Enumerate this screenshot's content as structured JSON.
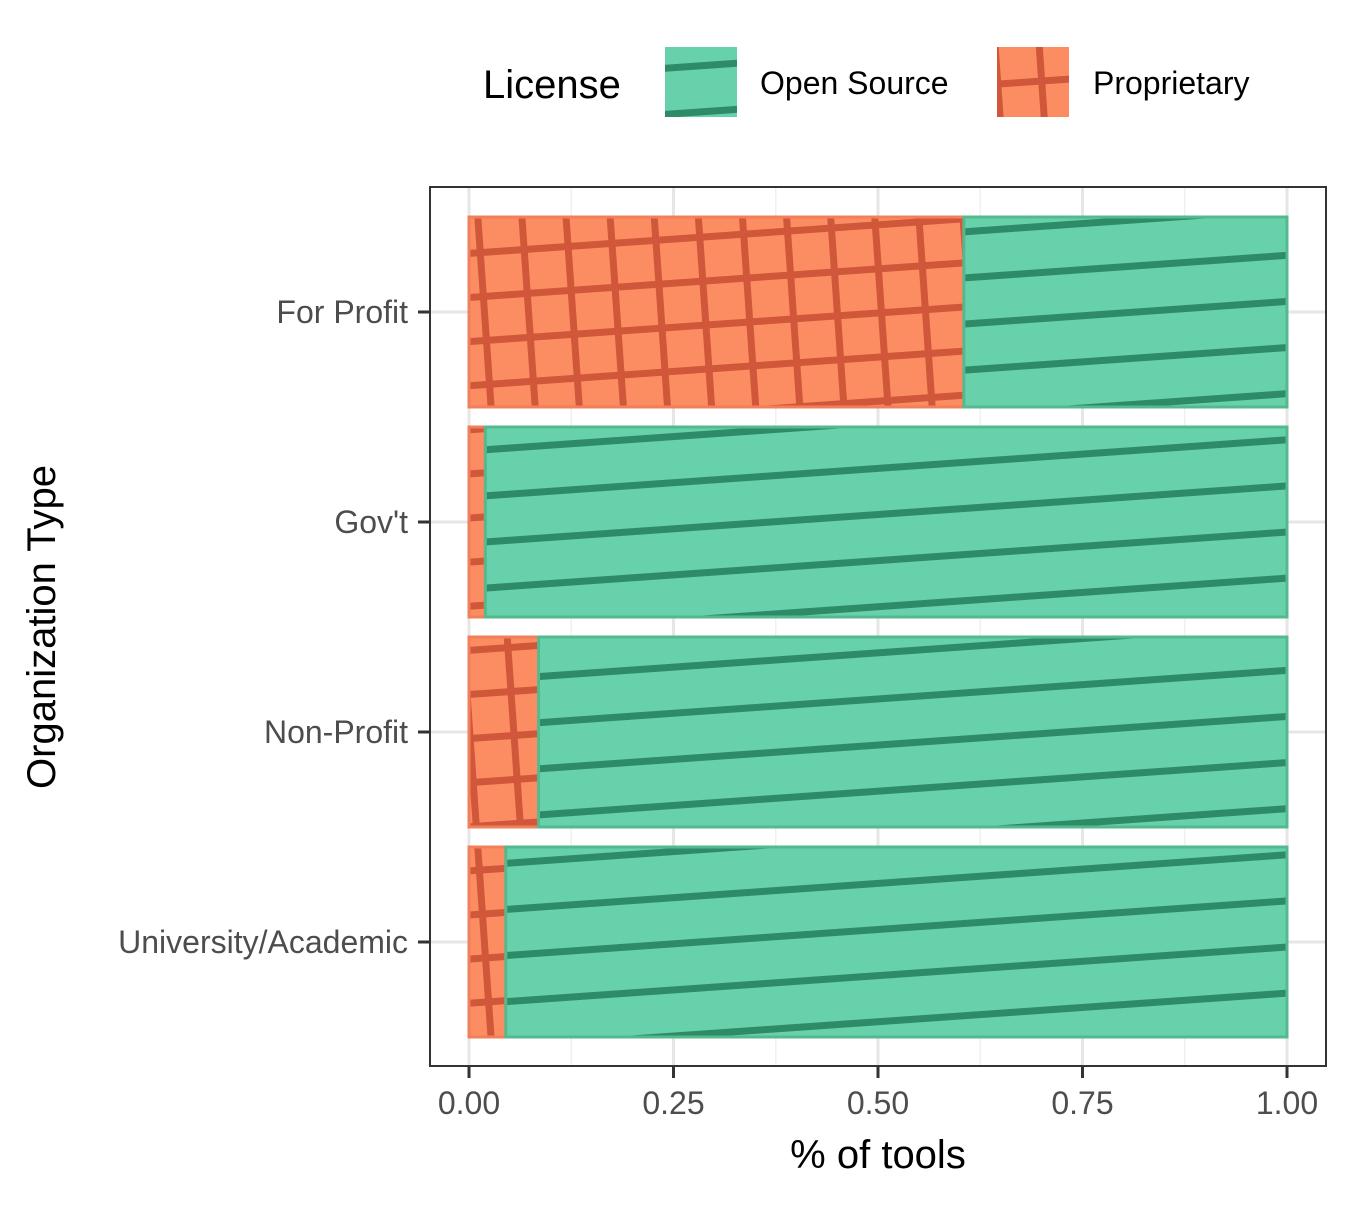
{
  "chart_data": {
    "type": "bar",
    "orientation": "horizontal",
    "stacked": true,
    "title": "",
    "xlabel": "% of tools",
    "ylabel": "Organization Type",
    "xlim": [
      0,
      1
    ],
    "x_ticks": [
      "0.00",
      "0.25",
      "0.50",
      "0.75",
      "1.00"
    ],
    "x_tick_values": [
      0,
      0.25,
      0.5,
      0.75,
      1
    ],
    "grid": true,
    "legend_position": "top",
    "legend_title": "License",
    "categories": [
      "For Profit",
      "Gov't",
      "Non-Profit",
      "University/Academic"
    ],
    "series": [
      {
        "name": "Proprietary",
        "values": [
          0.605,
          0.02,
          0.085,
          0.045
        ],
        "color": "#fc8d62",
        "stroke": "#d1573a",
        "pattern": "crosshatch"
      },
      {
        "name": "Open Source",
        "values": [
          0.395,
          0.98,
          0.915,
          0.955
        ],
        "color": "#66d1aa",
        "stroke": "#2e8b68",
        "pattern": "stripe"
      }
    ]
  }
}
